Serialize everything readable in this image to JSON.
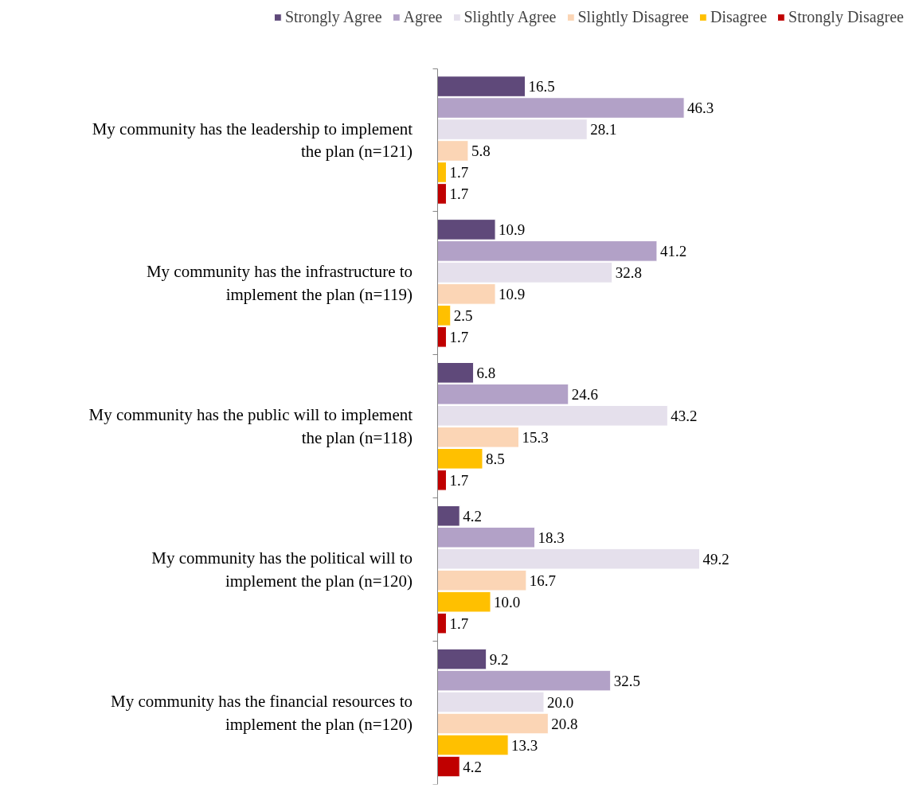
{
  "chart_data": {
    "type": "bar",
    "orientation": "horizontal",
    "legend": "top",
    "grid": false,
    "categories": [
      "My community has the leadership to implement the plan (n=121)",
      "My community has the infrastructure to implement the plan (n=119)",
      "My community has the public will to implement the plan (n=118)",
      "My community has the political will to implement the plan (n=120)",
      "My community has the financial resources to implement the plan (n=120)"
    ],
    "series": [
      {
        "name": "Strongly Agree",
        "color": "#5f497a",
        "values": [
          16.5,
          10.9,
          6.8,
          4.2,
          9.2
        ],
        "value_labels": [
          "16.5",
          "10.9",
          "6.8",
          "4.2",
          "9.2"
        ]
      },
      {
        "name": "Agree",
        "color": "#b2a1c7",
        "values": [
          46.3,
          41.2,
          24.6,
          18.3,
          32.5
        ],
        "value_labels": [
          "46.3",
          "41.2",
          "24.6",
          "18.3",
          "32.5"
        ]
      },
      {
        "name": "Slightly Agree",
        "color": "#e5e0ec",
        "values": [
          28.1,
          32.8,
          43.2,
          49.2,
          20.0
        ],
        "value_labels": [
          "28.1",
          "32.8",
          "43.2",
          "49.2",
          "20.0"
        ]
      },
      {
        "name": "Slightly Disagree",
        "color": "#fbd5b5",
        "values": [
          5.8,
          10.9,
          15.3,
          16.7,
          20.8
        ],
        "value_labels": [
          "5.8",
          "10.9",
          "15.3",
          "16.7",
          "20.8"
        ]
      },
      {
        "name": "Disagree",
        "color": "#ffc000",
        "values": [
          1.7,
          2.5,
          8.5,
          10.0,
          13.3
        ],
        "value_labels": [
          "1.7",
          "2.5",
          "8.5",
          "10.0",
          "13.3"
        ]
      },
      {
        "name": "Strongly Disagree",
        "color": "#c00000",
        "values": [
          1.7,
          1.7,
          1.7,
          1.7,
          4.2
        ],
        "value_labels": [
          "1.7",
          "1.7",
          "1.7",
          "1.7",
          "4.2"
        ]
      }
    ]
  }
}
